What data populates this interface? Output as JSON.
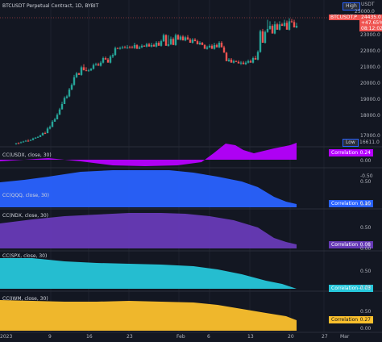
{
  "header": {
    "symbol_title": "BTCUSDT Perpetual Contract, 1D, BYBIT"
  },
  "price_axis": {
    "currency": "USDT",
    "ticks": [
      "23000.0",
      "22000.0",
      "21000.0",
      "20000.0",
      "19000.0",
      "18000.0",
      "17000.0"
    ],
    "high_label": "High",
    "high_value": "25000.0",
    "low_label": "Low",
    "low_value": "16611.0",
    "current_label": "BTCUSDT.P",
    "current_value": "24435.0",
    "change_pct": "+47.65%",
    "countdown": "08:12:02"
  },
  "panes": [
    {
      "title": "CC(USDX, close, 30)",
      "color": "#b600ff",
      "corr_label": "Correlation",
      "corr_value": "0.24",
      "ticks": [
        "0.00",
        "-0.50"
      ]
    },
    {
      "title": "CC(QQQ, close, 30)",
      "color": "#2962ff",
      "corr_label": "Correlation",
      "corr_value": "0.10",
      "ticks": [
        "0.50",
        "0.00"
      ]
    },
    {
      "title": "CC(NDX, close, 30)",
      "color": "#673ab7",
      "corr_label": "Correlation",
      "corr_value": "0.08",
      "ticks": [
        "0.50",
        "0.00"
      ]
    },
    {
      "title": "CC(SPX, close, 30)",
      "color": "#26c6da",
      "corr_label": "Correlation",
      "corr_value": "-0.03",
      "ticks": [
        "0.50",
        "0.00"
      ]
    },
    {
      "title": "CC(IWM, close, 30)",
      "color": "#fbc02d",
      "corr_label": "Correlation",
      "corr_value": "0.27",
      "ticks": [
        "0.50",
        "0.00"
      ]
    }
  ],
  "time_axis": [
    "2023",
    "9",
    "16",
    "23",
    "Feb",
    "6",
    "13",
    "20",
    "27",
    "Mar"
  ],
  "colors": {
    "up": "#26a69a",
    "down": "#ef5350",
    "background": "#131722",
    "grid": "#1e222d"
  }
}
